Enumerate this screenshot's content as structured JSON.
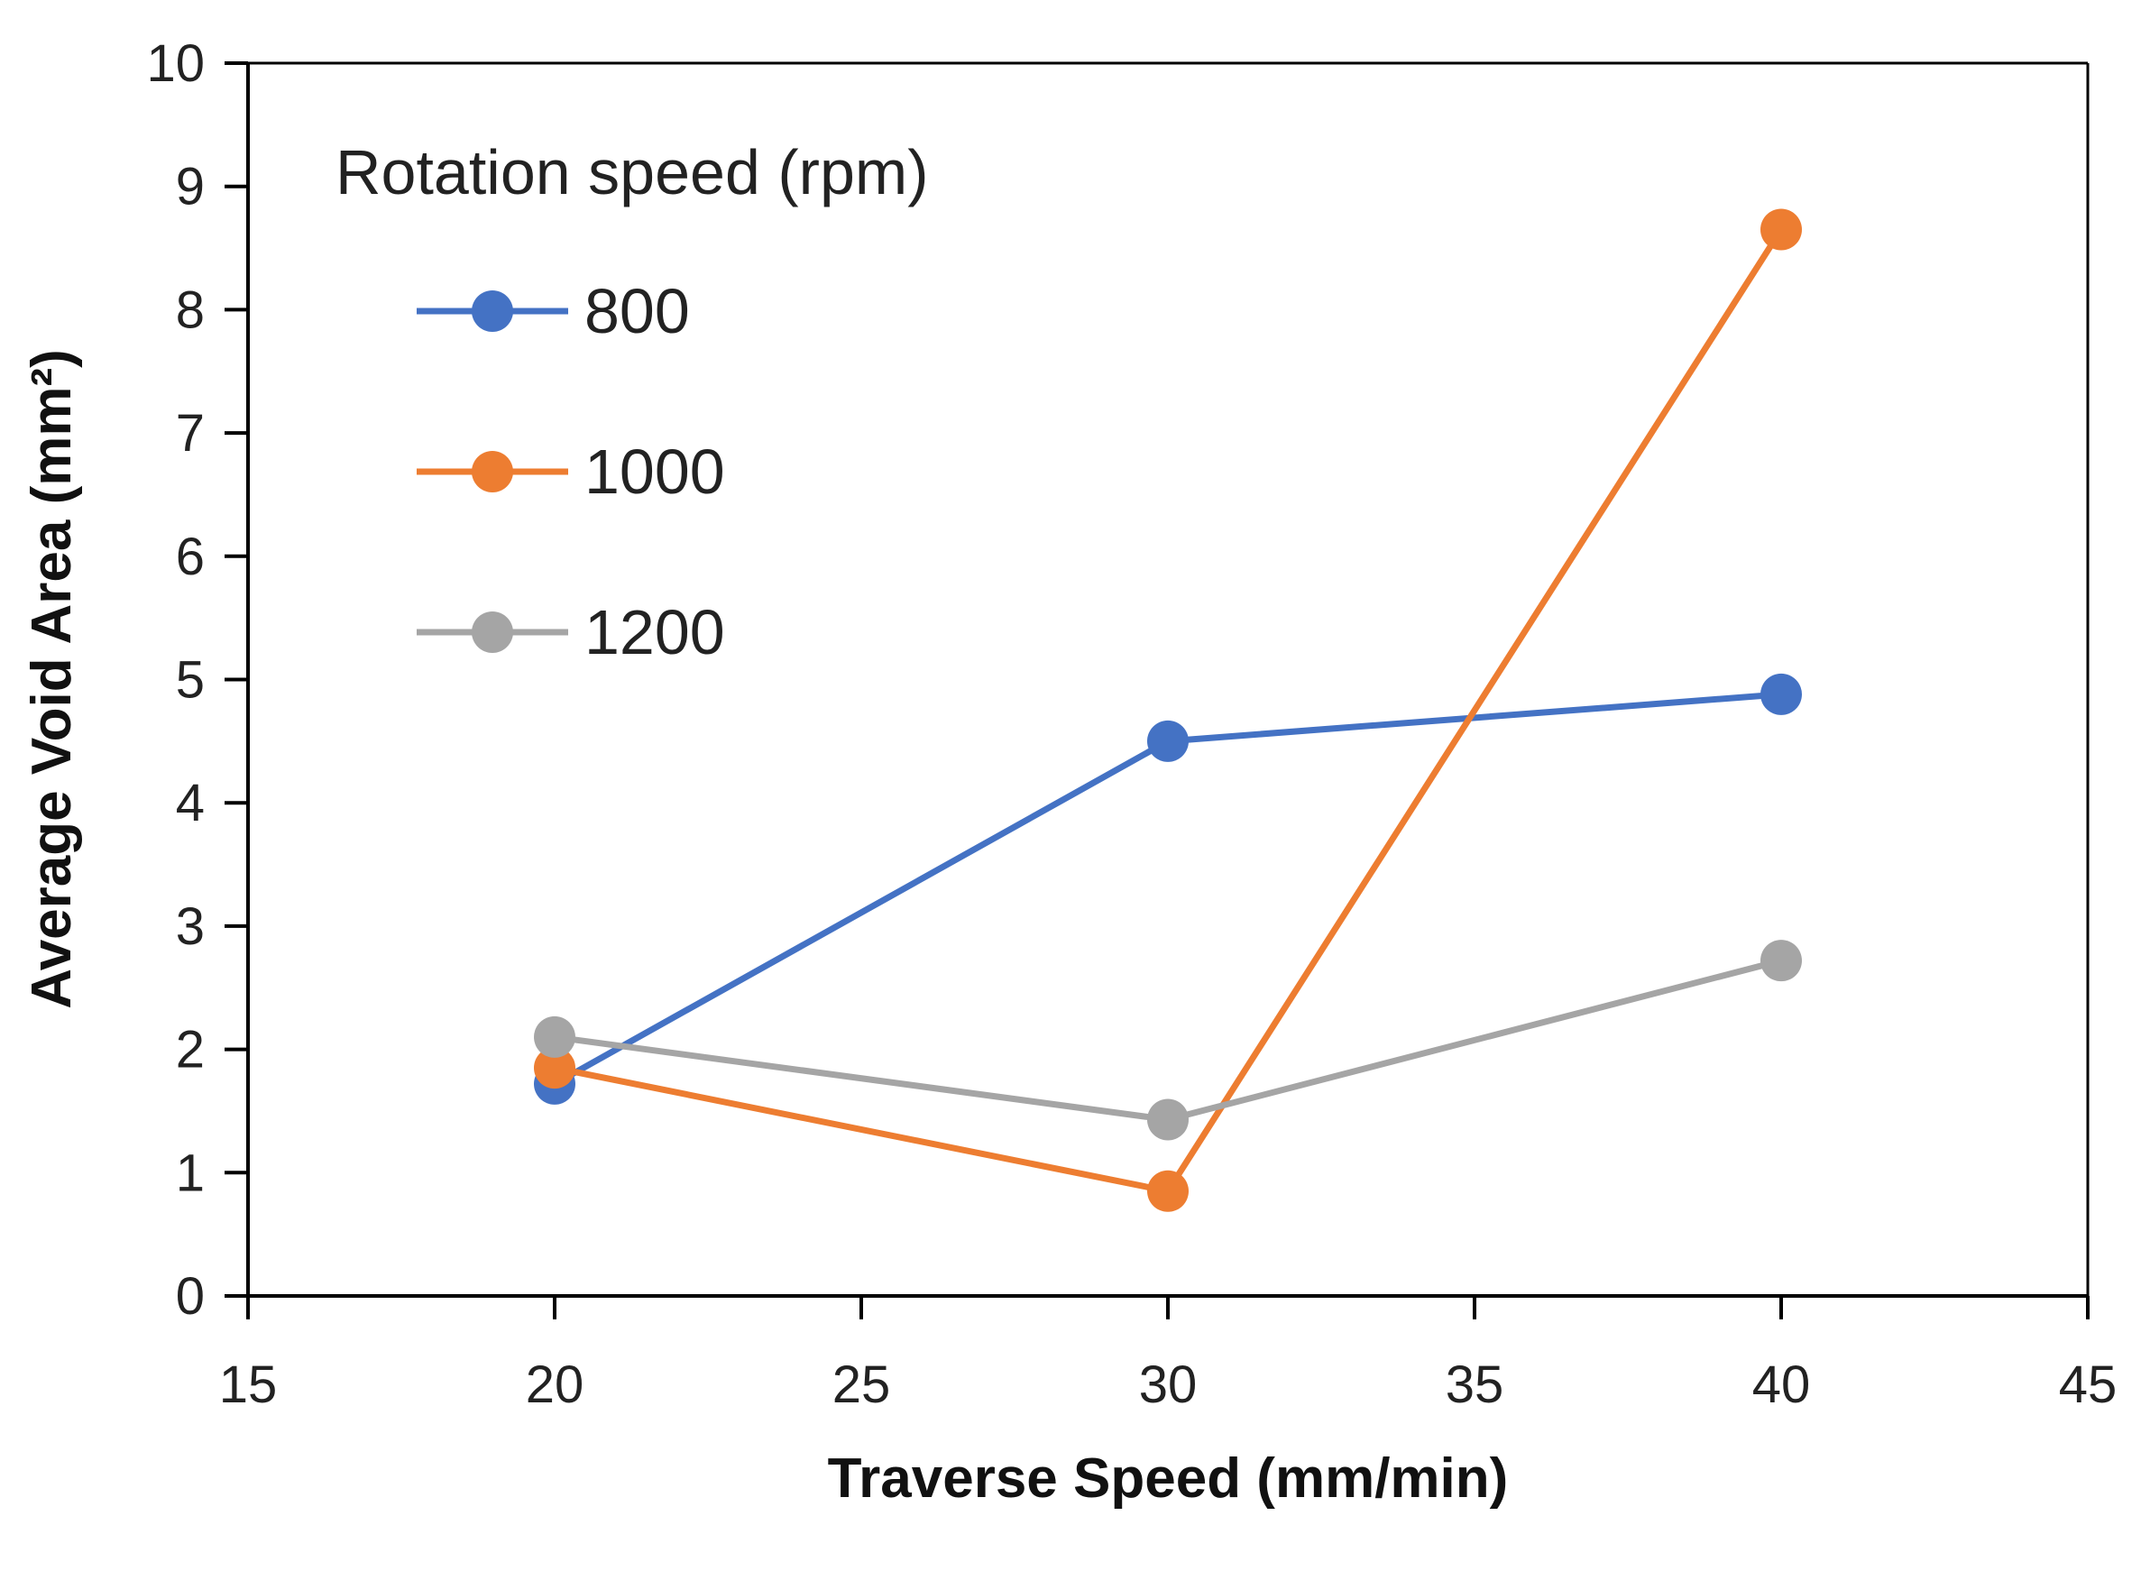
{
  "chart_data": {
    "type": "line",
    "title": "",
    "xlabel": "Traverse Speed (mm/min)",
    "ylabel": "Average Void Area (mm²)",
    "xlim": [
      15,
      45
    ],
    "ylim": [
      0,
      10
    ],
    "xticks": [
      15,
      20,
      25,
      30,
      35,
      40,
      45
    ],
    "yticks": [
      0,
      1,
      2,
      3,
      4,
      5,
      6,
      7,
      8,
      9,
      10
    ],
    "grid": false,
    "legend_title": "Rotation speed (rpm)",
    "legend_position": "top-left",
    "x": [
      20,
      30,
      40
    ],
    "series": [
      {
        "name": "800",
        "color": "#4472C4",
        "values": [
          1.72,
          4.5,
          4.88
        ]
      },
      {
        "name": "1000",
        "color": "#ED7D31",
        "values": [
          1.85,
          0.85,
          8.65
        ]
      },
      {
        "name": "1200",
        "color": "#A5A5A5",
        "values": [
          2.1,
          1.43,
          2.72
        ]
      }
    ]
  }
}
